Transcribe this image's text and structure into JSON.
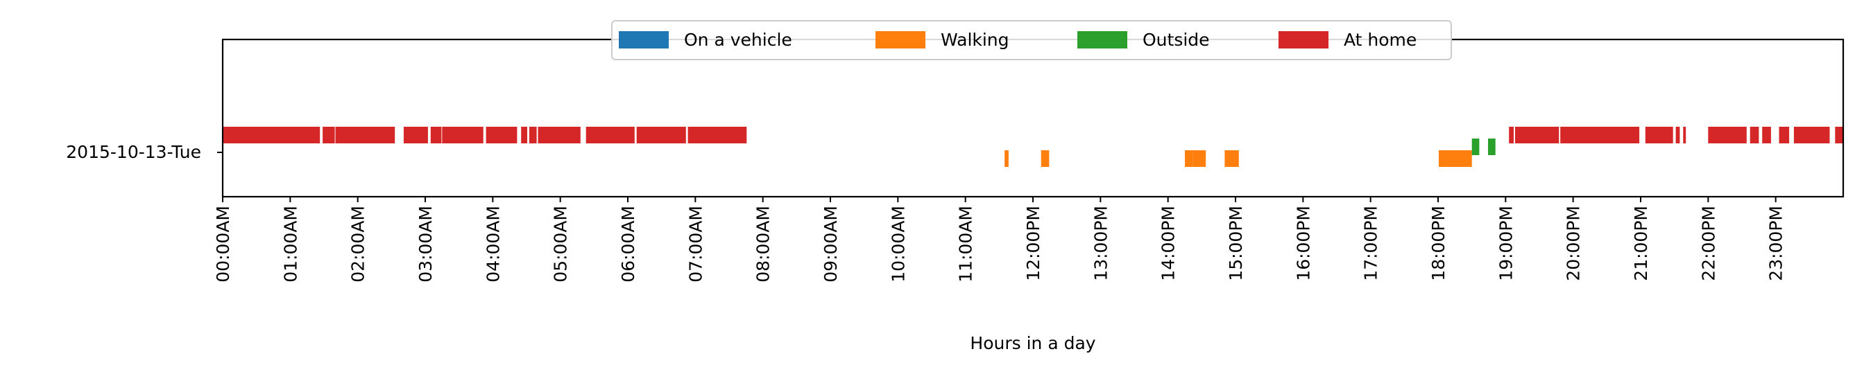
{
  "chart_data": {
    "type": "timeline",
    "title": "",
    "xlabel": "Hours in a day",
    "ylabel": "",
    "xlim": [
      0,
      24
    ],
    "grid": false,
    "legend_position": "top-center",
    "row_label": "2015-10-13-Tue",
    "x_tick_labels": [
      "00:00AM",
      "01:00AM",
      "02:00AM",
      "03:00AM",
      "04:00AM",
      "05:00AM",
      "06:00AM",
      "07:00AM",
      "08:00AM",
      "09:00AM",
      "10:00AM",
      "11:00AM",
      "12:00PM",
      "13:00PM",
      "14:00PM",
      "15:00PM",
      "16:00PM",
      "17:00PM",
      "18:00PM",
      "19:00PM",
      "20:00PM",
      "21:00PM",
      "22:00PM",
      "23:00PM"
    ],
    "series": [
      {
        "name": "On a vehicle",
        "color": "#1f77b4",
        "intervals": []
      },
      {
        "name": "Walking",
        "color": "#ff7f0e",
        "intervals": [
          [
            11.58,
            11.64
          ],
          [
            12.12,
            12.24
          ],
          [
            14.25,
            14.37
          ],
          [
            14.37,
            14.56
          ],
          [
            14.84,
            15.05
          ],
          [
            18.01,
            18.5
          ]
        ]
      },
      {
        "name": "Outside",
        "color": "#2ca02c",
        "intervals": [
          [
            18.5,
            18.61
          ],
          [
            18.74,
            18.85
          ]
        ]
      },
      {
        "name": "At home",
        "color": "#d62728",
        "intervals": [
          [
            0.0,
            1.44
          ],
          [
            1.48,
            1.66
          ],
          [
            1.67,
            2.55
          ],
          [
            2.68,
            3.04
          ],
          [
            3.08,
            3.24
          ],
          [
            3.25,
            3.86
          ],
          [
            3.9,
            4.36
          ],
          [
            4.42,
            4.51
          ],
          [
            4.54,
            4.65
          ],
          [
            4.67,
            5.3
          ],
          [
            5.38,
            6.1
          ],
          [
            6.13,
            6.86
          ],
          [
            6.89,
            7.76
          ],
          [
            19.05,
            19.12
          ],
          [
            19.14,
            19.79
          ],
          [
            19.81,
            20.98
          ],
          [
            21.07,
            21.48
          ],
          [
            21.52,
            21.58
          ],
          [
            21.63,
            21.67
          ],
          [
            22.0,
            22.57
          ],
          [
            22.62,
            22.75
          ],
          [
            22.8,
            22.93
          ],
          [
            23.05,
            23.2
          ],
          [
            23.27,
            23.8
          ],
          [
            23.88,
            24.0
          ]
        ]
      }
    ]
  }
}
